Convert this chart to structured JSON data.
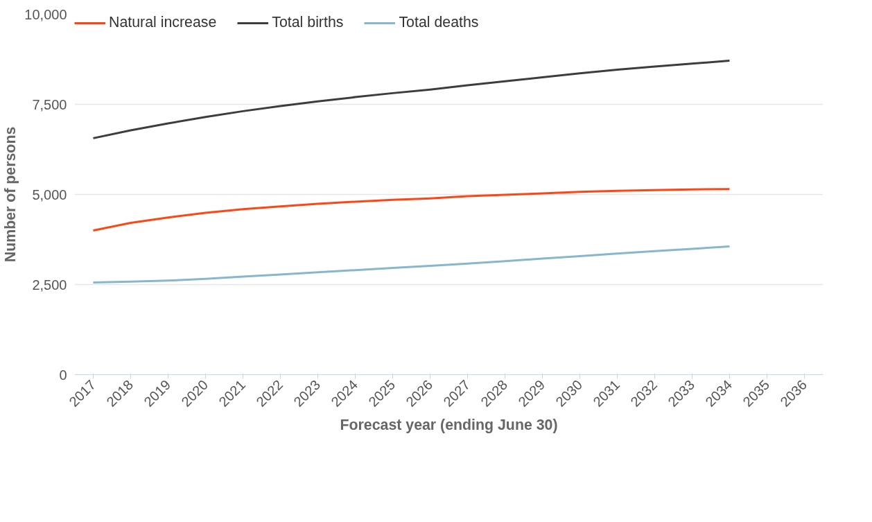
{
  "chart_data": {
    "type": "line",
    "xlabel": "Forecast year (ending June 30)",
    "ylabel": "Number of persons",
    "categories": [
      "2017",
      "2018",
      "2019",
      "2020",
      "2021",
      "2022",
      "2023",
      "2024",
      "2025",
      "2026",
      "2027",
      "2028",
      "2029",
      "2030",
      "2031",
      "2032",
      "2033",
      "2034",
      "2035",
      "2036"
    ],
    "series": [
      {
        "name": "Natural increase",
        "color": "#ff4514",
        "values": [
          4000,
          4210,
          4360,
          4490,
          4590,
          4670,
          4740,
          4800,
          4850,
          4890,
          4950,
          4990,
          5030,
          5070,
          5100,
          5120,
          5140,
          5150,
          null,
          null
        ]
      },
      {
        "name": "Total births",
        "color": "#3d3d3d",
        "values": [
          6560,
          6780,
          6970,
          7150,
          7310,
          7450,
          7580,
          7700,
          7810,
          7910,
          8030,
          8140,
          8250,
          8360,
          8460,
          8550,
          8630,
          8710,
          null,
          null
        ]
      },
      {
        "name": "Total deaths",
        "color": "#87b7cc",
        "values": [
          2560,
          2580,
          2610,
          2660,
          2720,
          2780,
          2840,
          2900,
          2960,
          3020,
          3080,
          3150,
          3220,
          3290,
          3360,
          3430,
          3490,
          3560,
          null,
          null
        ]
      }
    ],
    "ylim": [
      0,
      10000
    ],
    "yticks": [
      {
        "value": 0,
        "label": "0"
      },
      {
        "value": 2500,
        "label": "2,500"
      },
      {
        "value": 5000,
        "label": "5,000"
      },
      {
        "value": 7500,
        "label": "7,500"
      },
      {
        "value": 10000,
        "label": "10,000"
      }
    ],
    "grid": "y",
    "legend": "top left",
    "marker": "none",
    "line_style": "solid"
  }
}
